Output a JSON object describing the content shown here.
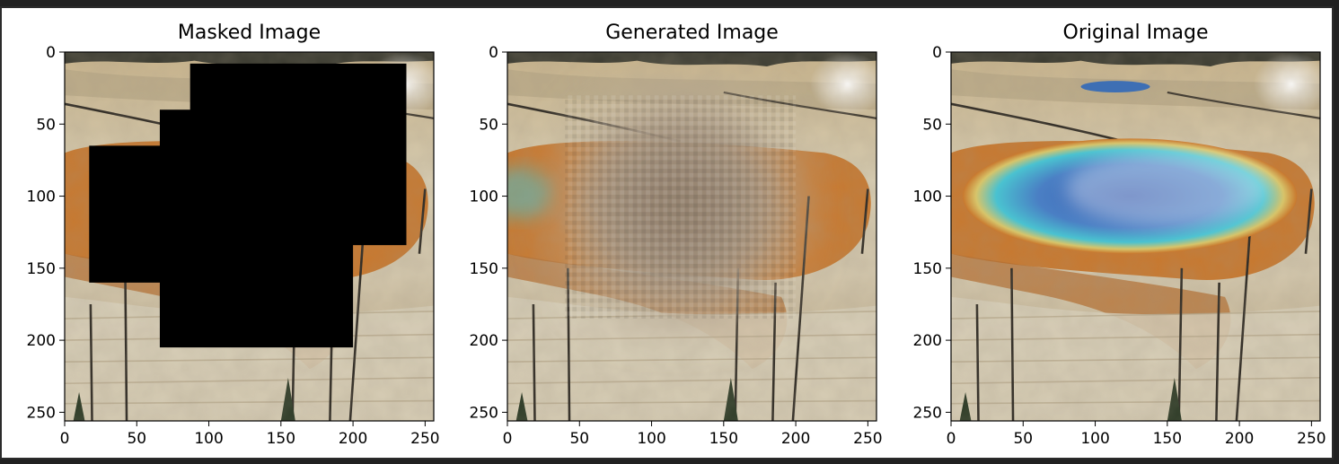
{
  "figure": {
    "panels": [
      {
        "id": "masked",
        "title": "Masked Image",
        "has_mask": true,
        "blurred_center": false,
        "pool_visible": false
      },
      {
        "id": "generated",
        "title": "Generated Image",
        "has_mask": false,
        "blurred_center": true,
        "pool_visible": false
      },
      {
        "id": "original",
        "title": "Original Image",
        "has_mask": false,
        "blurred_center": false,
        "pool_visible": true
      }
    ],
    "x_ticks": [
      "0",
      "50",
      "100",
      "150",
      "200",
      "250"
    ],
    "y_ticks": [
      "0",
      "50",
      "100",
      "150",
      "200",
      "250"
    ],
    "axis_range": {
      "x": [
        0,
        256
      ],
      "y": [
        0,
        256
      ]
    },
    "mask_color": "#000000",
    "colors": {
      "sand": "#c8b48a",
      "pale_ground": "#ddd6c3",
      "orange_mat": "#c8782e",
      "pool_blue": "#3d6fb6",
      "pool_teal": "#4ac2d0",
      "blur_tone": "#9c8a78",
      "steam": "#eef3f7"
    }
  }
}
